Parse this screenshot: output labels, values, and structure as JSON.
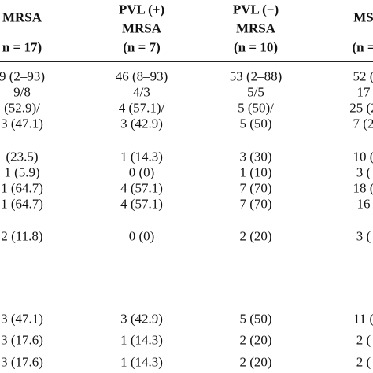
{
  "table": {
    "header": [
      [
        "MRSA",
        "PVL (+)",
        "PVL (−)",
        "MS"
      ],
      [
        "",
        "MRSA",
        "MRSA",
        ""
      ],
      [
        "n = 17)",
        "(n = 7)",
        "(n = 10)",
        "(n ="
      ]
    ],
    "rows": [
      [
        "9 (2–93)",
        "46 (8–93)",
        "53 (2–88)",
        "52 ("
      ],
      [
        "9/8",
        "4/3",
        "5/5",
        "17"
      ],
      [
        "(52.9)/",
        "4 (57.1)/",
        "5 (50)/",
        "25 (2"
      ],
      [
        "3 (47.1)",
        "3 (42.9)",
        "5 (50)",
        "7 (2"
      ],
      [
        "(23.5)",
        "1 (14.3)",
        "3 (30)",
        "10 ("
      ],
      [
        "1 (5.9)",
        "0 (0)",
        "1 (10)",
        "3 ("
      ],
      [
        "1 (64.7)",
        "4 (57.1)",
        "7 (70)",
        "18 ("
      ],
      [
        "1 (64.7)",
        "4 (57.1)",
        "7 (70)",
        "16"
      ],
      [
        "2 (11.8)",
        "0 (0)",
        "2 (20)",
        "3 ("
      ],
      [
        "3 (47.1)",
        "3 (42.9)",
        "5 (50)",
        "11 ("
      ],
      [
        "3 (17.6)",
        "1 (14.3)",
        "2 (20)",
        "2 ("
      ],
      [
        "3 (17.6)",
        "1 (14.3)",
        "2 (20)",
        "2 ("
      ]
    ]
  }
}
